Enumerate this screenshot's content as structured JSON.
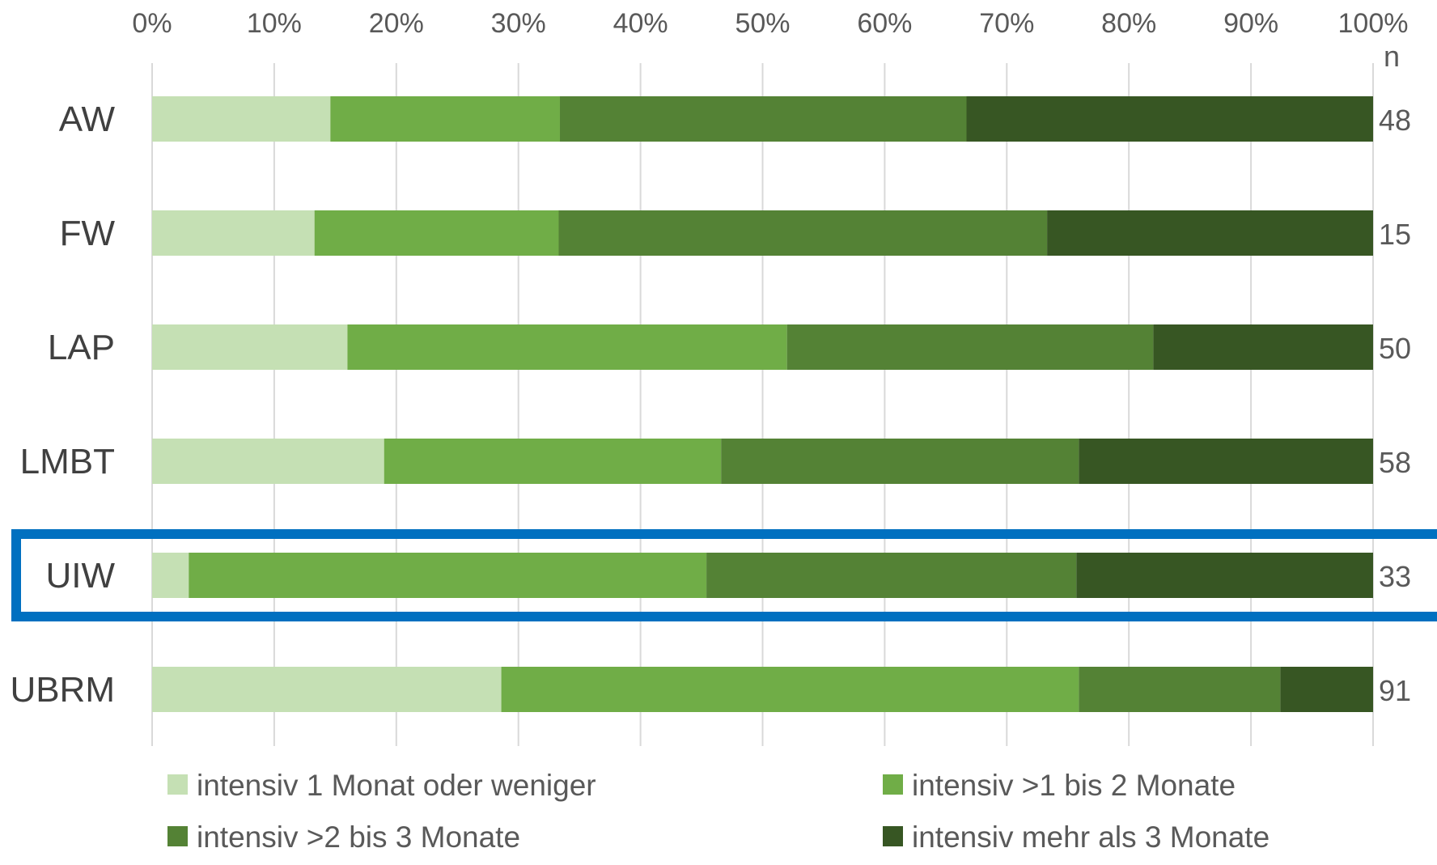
{
  "chart_data": {
    "type": "bar",
    "orientation": "horizontal",
    "stacked": true,
    "percent_stacked": true,
    "categories": [
      "AW",
      "FW",
      "LAP",
      "LMBT",
      "UIW",
      "UBRM"
    ],
    "series": [
      {
        "name": "intensiv 1 Monat oder weniger",
        "color": "#c5e0b4",
        "values": [
          14.6,
          13.3,
          16.0,
          19.0,
          3.0,
          28.6
        ]
      },
      {
        "name": "intensiv >1 bis 2 Monate",
        "color": "#70ad47",
        "values": [
          18.8,
          20.0,
          36.0,
          27.6,
          42.4,
          47.3
        ]
      },
      {
        "name": "intensiv >2 bis 3 Monate",
        "color": "#548235",
        "values": [
          33.3,
          40.0,
          30.0,
          29.3,
          30.3,
          16.5
        ]
      },
      {
        "name": "intensiv mehr als 3 Monate",
        "color": "#375623",
        "values": [
          33.3,
          26.7,
          18.0,
          24.1,
          24.3,
          7.6
        ]
      }
    ],
    "x_ticks": [
      "0%",
      "10%",
      "20%",
      "30%",
      "40%",
      "50%",
      "60%",
      "70%",
      "80%",
      "90%",
      "100%"
    ],
    "xlim": [
      0,
      100
    ],
    "x_axis_position": "top",
    "grid": "vertical",
    "n_header": "n",
    "n_values": [
      "48",
      "15",
      "50",
      "58",
      "33",
      "91"
    ],
    "highlighted_category": "UIW",
    "highlight_color": "#0070c0",
    "legend_position": "bottom",
    "gridline_color": "#d9d9d9"
  }
}
